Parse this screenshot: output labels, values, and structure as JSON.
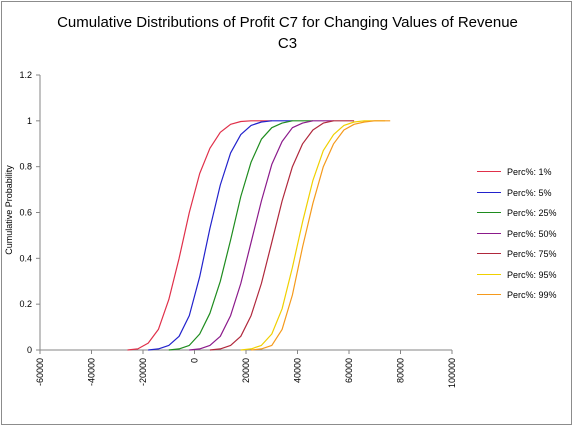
{
  "chart_data": {
    "type": "line",
    "title": "Cumulative Distributions of Profit C7 for Changing Values of Revenue C3",
    "xlabel": "",
    "ylabel": "Cumulative Probability",
    "xlim": [
      -60000,
      100000
    ],
    "ylim": [
      0,
      1.2
    ],
    "x_ticks": [
      "-60000",
      "-40000",
      "-20000",
      "0",
      "20000",
      "40000",
      "60000",
      "80000",
      "100000"
    ],
    "y_ticks": [
      "0",
      "0.2",
      "0.4",
      "0.6",
      "0.8",
      "1",
      "1.2"
    ],
    "grid": false,
    "legend_position": "right",
    "series": [
      {
        "name": "Perc%: 1%",
        "color": "#e0304a",
        "x": [
          -26000,
          -22000,
          -18000,
          -14000,
          -10000,
          -6000,
          -2000,
          2000,
          6000,
          10000,
          14000,
          18000,
          22000,
          26000,
          30000
        ],
        "y": [
          0,
          0.005,
          0.03,
          0.09,
          0.22,
          0.4,
          0.6,
          0.77,
          0.88,
          0.95,
          0.985,
          0.997,
          1,
          1,
          1
        ]
      },
      {
        "name": "Perc%: 5%",
        "color": "#2222cc",
        "x": [
          -18000,
          -14000,
          -10000,
          -6000,
          -2000,
          2000,
          6000,
          10000,
          14000,
          18000,
          22000,
          26000,
          30000,
          34000,
          38000
        ],
        "y": [
          0,
          0.005,
          0.02,
          0.06,
          0.15,
          0.32,
          0.53,
          0.72,
          0.86,
          0.94,
          0.98,
          0.995,
          1,
          1,
          1
        ]
      },
      {
        "name": "Perc%: 25%",
        "color": "#1e8c1e",
        "x": [
          -10000,
          -6000,
          -2000,
          2000,
          6000,
          10000,
          14000,
          18000,
          22000,
          26000,
          30000,
          34000,
          38000,
          42000,
          46000
        ],
        "y": [
          0,
          0.005,
          0.02,
          0.07,
          0.16,
          0.3,
          0.48,
          0.67,
          0.82,
          0.92,
          0.97,
          0.99,
          1,
          1,
          1
        ]
      },
      {
        "name": "Perc%: 50%",
        "color": "#8b1a8b",
        "x": [
          -2000,
          2000,
          6000,
          10000,
          14000,
          18000,
          22000,
          26000,
          30000,
          34000,
          38000,
          42000,
          46000,
          50000,
          54000
        ],
        "y": [
          0,
          0.005,
          0.02,
          0.06,
          0.15,
          0.29,
          0.47,
          0.65,
          0.81,
          0.91,
          0.97,
          0.99,
          1,
          1,
          1
        ]
      },
      {
        "name": "Perc%: 75%",
        "color": "#b0283c",
        "x": [
          6000,
          10000,
          14000,
          18000,
          22000,
          26000,
          30000,
          34000,
          38000,
          42000,
          46000,
          50000,
          54000,
          58000,
          62000
        ],
        "y": [
          0,
          0.005,
          0.02,
          0.06,
          0.15,
          0.29,
          0.47,
          0.65,
          0.8,
          0.9,
          0.96,
          0.99,
          1,
          1,
          1
        ]
      },
      {
        "name": "Perc%: 95%",
        "color": "#f0d000",
        "x": [
          18000,
          22000,
          26000,
          30000,
          34000,
          38000,
          42000,
          46000,
          50000,
          54000,
          58000,
          62000,
          66000,
          70000,
          74000
        ],
        "y": [
          0,
          0.005,
          0.02,
          0.07,
          0.18,
          0.36,
          0.56,
          0.74,
          0.87,
          0.94,
          0.98,
          0.995,
          1,
          1,
          1
        ]
      },
      {
        "name": "Perc%: 99%",
        "color": "#f59a1c",
        "x": [
          22000,
          26000,
          30000,
          34000,
          38000,
          42000,
          46000,
          50000,
          54000,
          58000,
          62000,
          66000,
          70000,
          74000,
          76000
        ],
        "y": [
          0,
          0.005,
          0.02,
          0.09,
          0.24,
          0.45,
          0.64,
          0.8,
          0.9,
          0.96,
          0.985,
          0.995,
          1,
          1,
          1
        ]
      }
    ]
  }
}
